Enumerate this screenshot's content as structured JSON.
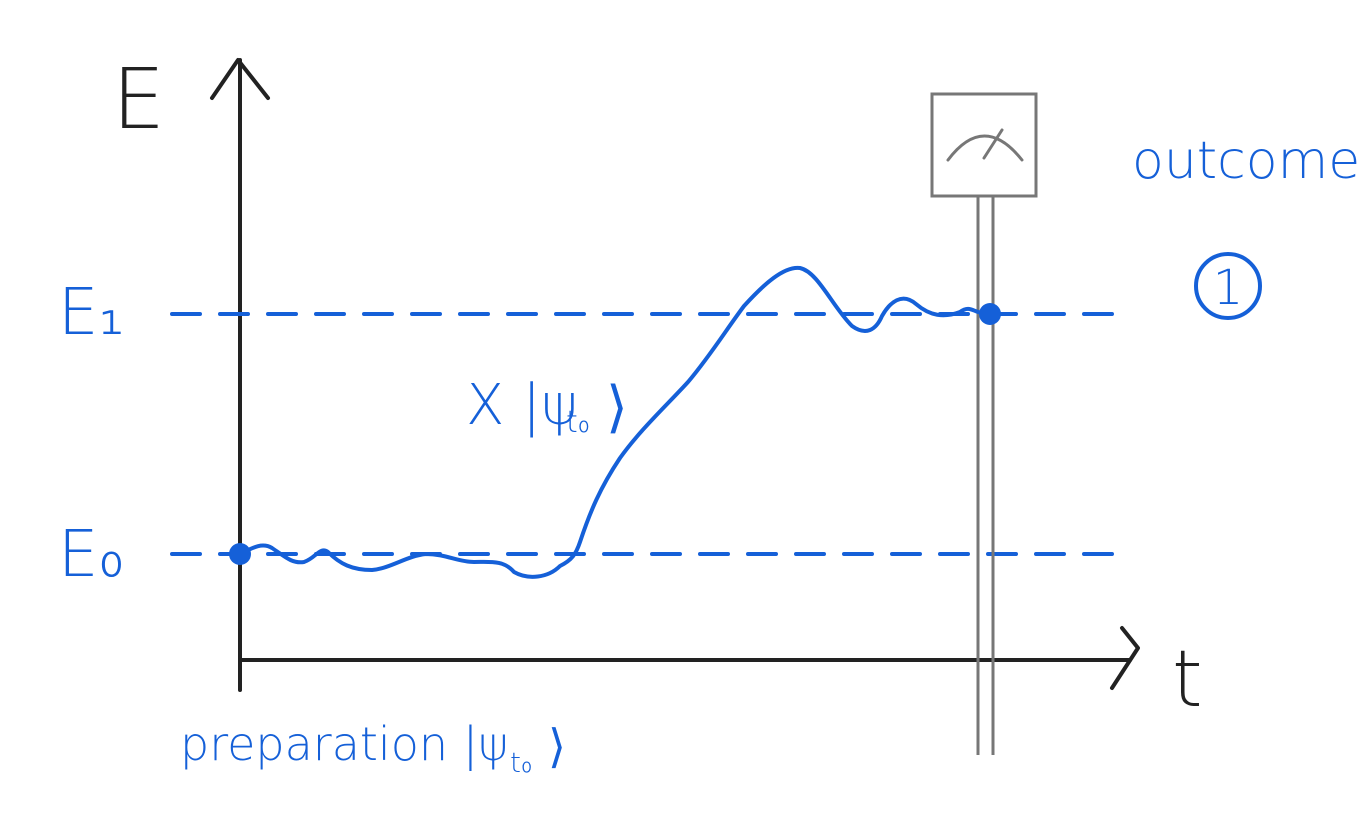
{
  "colors": {
    "blue": "#1560d8",
    "axis": "#222222",
    "meter": "#777777"
  },
  "axes": {
    "y_label": "E",
    "x_label": "t"
  },
  "levels": {
    "upper_label": "E₁",
    "ground_label": "E₀"
  },
  "annotations": {
    "state_label": "X |ψ",
    "state_subscript": "t₀",
    "state_close": "⟩",
    "preparation_label": "preparation |ψ",
    "preparation_subscript": "t₀",
    "preparation_close": "⟩",
    "outcome_label": "outcome",
    "outcome_value": "1"
  },
  "icons": {
    "meter": "measurement-meter-icon"
  }
}
